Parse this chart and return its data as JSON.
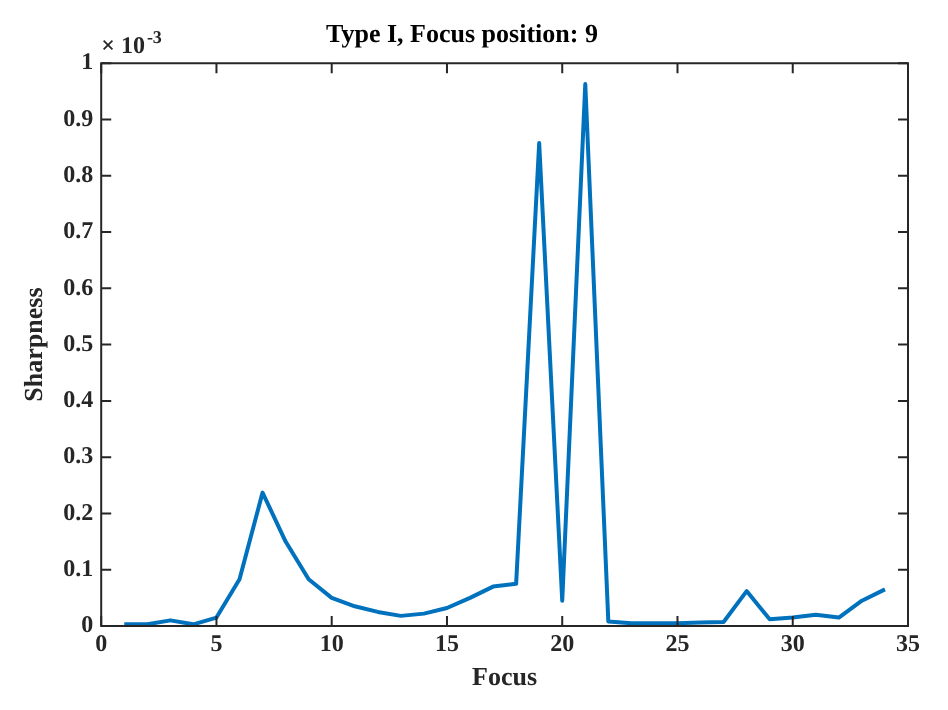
{
  "chart_data": {
    "type": "line",
    "title": "Type I, Focus position: 9",
    "xlabel": "Focus",
    "ylabel": "Sharpness",
    "annotations": [
      "× 10$^{-3}$"
    ],
    "x": [
      1,
      2,
      3,
      4,
      5,
      6,
      7,
      8,
      9,
      10,
      11,
      12,
      13,
      14,
      15,
      16,
      17,
      18,
      19,
      20,
      21,
      22,
      23,
      24,
      25,
      26,
      27,
      28,
      29,
      30,
      31,
      32,
      33,
      34
    ],
    "series": [
      {
        "color": "#0072bd",
        "values": [
          0.003,
          0.003,
          0.01,
          0.003,
          0.015,
          0.083,
          0.237,
          0.15,
          0.083,
          0.05,
          0.035,
          0.025,
          0.018,
          0.022,
          0.032,
          0.05,
          0.07,
          0.075,
          0.858,
          0.045,
          0.963,
          0.008,
          0.005,
          0.005,
          0.005,
          0.006,
          0.007,
          0.062,
          0.012,
          0.015,
          0.02,
          0.015,
          0.045,
          0.065
        ]
      }
    ],
    "xlim": [
      0,
      35
    ],
    "xticks": [
      0,
      5,
      10,
      15,
      20,
      25,
      30,
      35
    ],
    "ylim": [
      0,
      1
    ],
    "yticks": [
      0,
      0.1,
      0.2,
      0.3,
      0.4,
      0.5,
      0.6,
      0.7,
      0.8,
      0.9,
      1
    ],
    "grid": false,
    "legend": false,
    "marker": "none",
    "line_style": "solid"
  }
}
